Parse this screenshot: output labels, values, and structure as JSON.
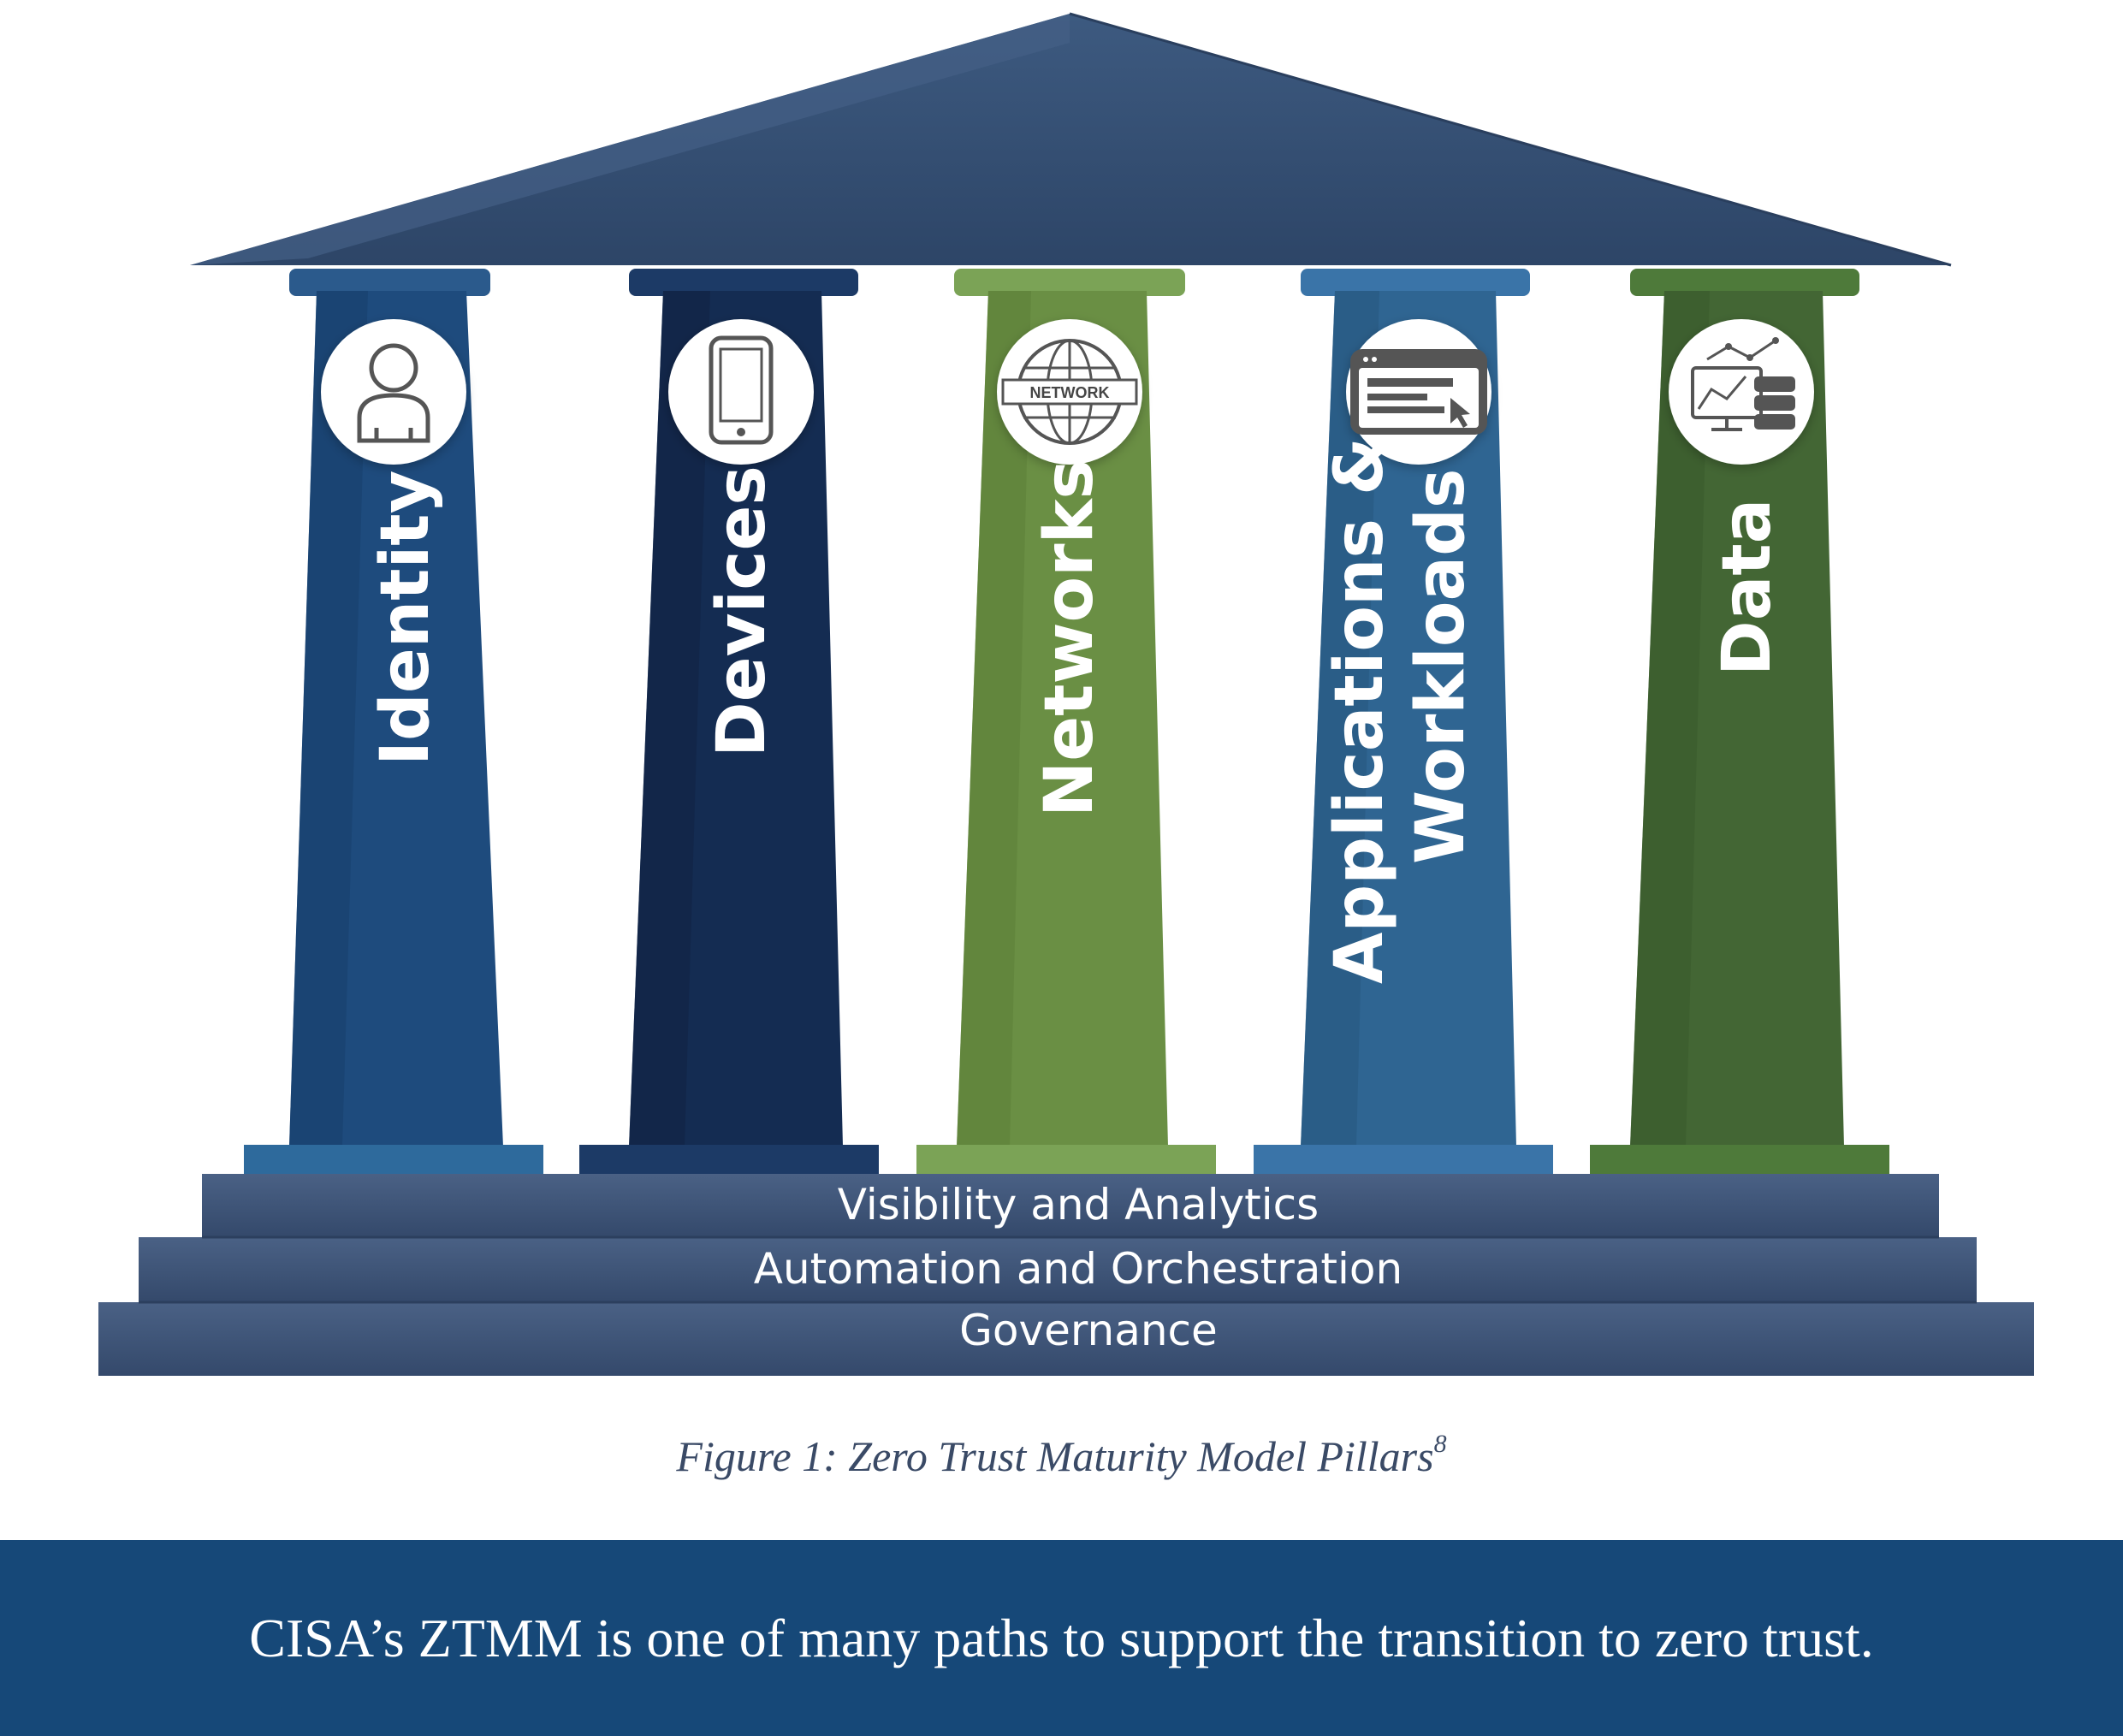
{
  "pillars": [
    {
      "label": "Identity",
      "icon": "person-icon",
      "color": "#1e4b7d"
    },
    {
      "label": "Devices",
      "icon": "mobile-device-icon",
      "color": "#142c52"
    },
    {
      "label": "Networks",
      "icon": "network-globe-icon",
      "color": "#6a8f44"
    },
    {
      "label_line1": "Applications &",
      "label_line2": "Workloads",
      "icon": "application-window-icon",
      "color": "#2f6592"
    },
    {
      "label": "Data",
      "icon": "data-analytics-icon",
      "color": "#436634"
    }
  ],
  "network_icon_text": "NETWORK",
  "foundation": {
    "visibility": "Visibility and Analytics",
    "automation": "Automation and Orchestration",
    "governance": "Governance"
  },
  "caption": {
    "text": "Figure 1: Zero Trust Maturity Model Pillars",
    "footnote": "8"
  },
  "banner": {
    "text": "CISA’s ZTMM is one of many paths to support the transition to zero trust.",
    "color": "#164878"
  },
  "colors": {
    "roof": "#334d70",
    "steps": "#3d5477"
  }
}
